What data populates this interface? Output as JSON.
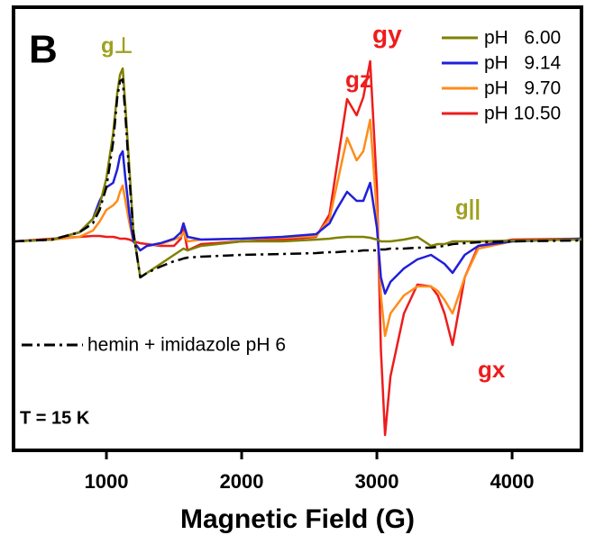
{
  "chart_data": {
    "type": "line",
    "panel_label": "B",
    "x_label": "Magnetic Field (G)",
    "x": [
      313,
      600,
      800,
      900,
      950,
      1000,
      1050,
      1080,
      1100,
      1120,
      1140,
      1170,
      1200,
      1250,
      1300,
      1400,
      1500,
      1550,
      1570,
      1600,
      1700,
      2000,
      2300,
      2550,
      2650,
      2700,
      2780,
      2850,
      2900,
      2950,
      3000,
      3030,
      3060,
      3100,
      3200,
      3300,
      3400,
      3450,
      3500,
      3560,
      3650,
      3750,
      4000,
      4513
    ],
    "xlim": [
      313,
      4513
    ],
    "xticks": [
      1000,
      2000,
      3000,
      4000
    ],
    "ylim": [
      -232,
      260
    ],
    "series": [
      {
        "name": "pH   6.00",
        "color": "#808000",
        "style": "solid",
        "values": [
          0,
          2,
          10,
          25,
          40,
          70,
          120,
          165,
          185,
          192,
          150,
          80,
          10,
          -40,
          -35,
          -25,
          -15,
          -10,
          -8,
          -10,
          -5,
          0,
          0,
          2,
          3,
          4,
          5,
          5,
          5,
          4,
          2,
          0,
          0,
          0,
          2,
          5,
          -5,
          -3,
          -3,
          0,
          0,
          0,
          1,
          2
        ]
      },
      {
        "name": "pH   9.14",
        "color": "#1f1fdc",
        "style": "solid",
        "values": [
          0,
          2,
          10,
          25,
          45,
          60,
          65,
          80,
          95,
          100,
          70,
          30,
          0,
          -10,
          -5,
          -2,
          3,
          10,
          20,
          5,
          2,
          3,
          5,
          8,
          20,
          35,
          55,
          45,
          45,
          65,
          15,
          -40,
          -58,
          -45,
          -30,
          -20,
          -15,
          -20,
          -25,
          -35,
          -15,
          -5,
          0,
          3
        ]
      },
      {
        "name": "pH   9.70",
        "color": "#ff8c1a",
        "style": "solid",
        "values": [
          0,
          2,
          5,
          12,
          22,
          35,
          40,
          45,
          55,
          62,
          45,
          20,
          0,
          -10,
          -5,
          -3,
          2,
          5,
          10,
          0,
          2,
          3,
          4,
          6,
          25,
          60,
          115,
          90,
          100,
          135,
          30,
          -60,
          -105,
          -80,
          -60,
          -50,
          -50,
          -55,
          -65,
          -80,
          -40,
          -8,
          0,
          3
        ]
      },
      {
        "name": "pH 10.50",
        "color": "#ee1c1c",
        "style": "solid",
        "values": [
          0,
          3,
          5,
          6,
          6,
          5,
          5,
          4,
          3,
          3,
          3,
          2,
          0,
          -2,
          -3,
          -5,
          -5,
          3,
          15,
          -10,
          -3,
          0,
          2,
          5,
          30,
          80,
          158,
          140,
          160,
          200,
          60,
          -120,
          -215,
          -150,
          -80,
          -48,
          -50,
          -60,
          -80,
          -115,
          -40,
          -5,
          2,
          3
        ]
      },
      {
        "name": "hemin + imidazole pH 6",
        "color": "#000000",
        "style": "dashdot",
        "values": [
          0,
          2,
          10,
          20,
          35,
          60,
          110,
          160,
          178,
          180,
          140,
          70,
          10,
          -40,
          -35,
          -28,
          -22,
          -20,
          -19,
          -18,
          -17,
          -15,
          -14,
          -13,
          -12,
          -12,
          -11,
          -11,
          -10,
          -10,
          -10,
          -9,
          -9,
          -8,
          -8,
          -7,
          -7,
          -6,
          -5,
          -3,
          -2,
          -1,
          0,
          1
        ]
      }
    ],
    "annotations": [
      {
        "text": "g⊥",
        "color": "#a0a020"
      },
      {
        "text": "gy",
        "color": "#ee1c1c"
      },
      {
        "text": "gz",
        "color": "#ee1c1c"
      },
      {
        "text": "gx",
        "color": "#ee1c1c"
      },
      {
        "text": "g||",
        "color": "#a0a020"
      },
      {
        "text": "T = 15 K",
        "color": "#000000"
      }
    ]
  }
}
